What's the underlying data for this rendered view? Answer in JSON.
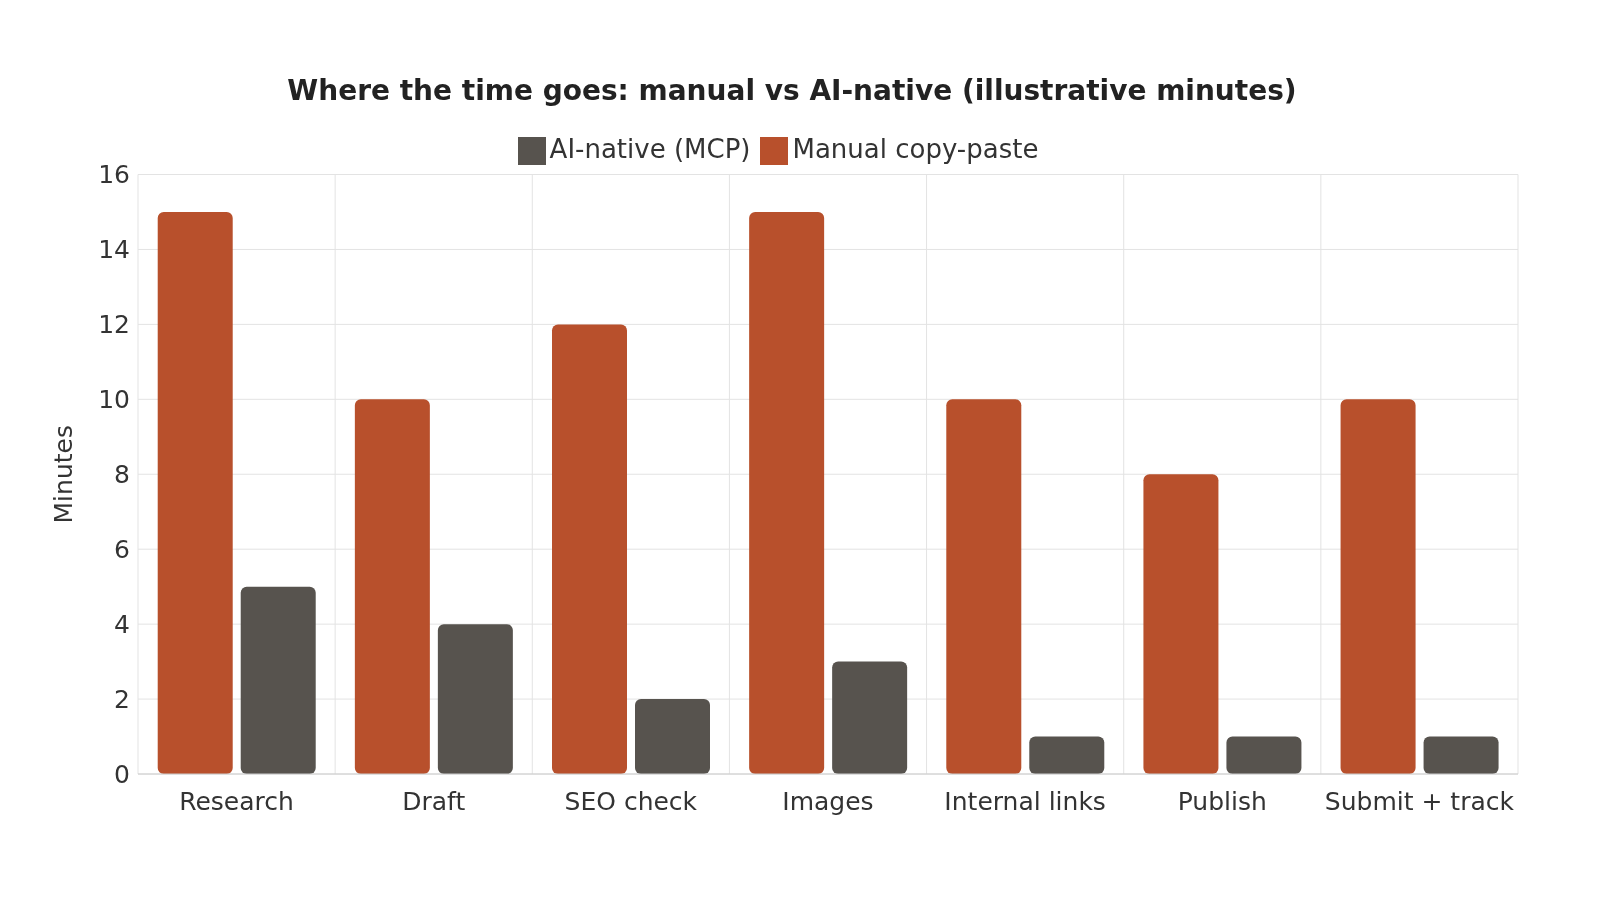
{
  "chart_data": {
    "type": "bar",
    "title": "Where the time goes: manual vs AI-native (illustrative minutes)",
    "ylabel": "Minutes",
    "categories": [
      "Research",
      "Draft",
      "SEO check",
      "Images",
      "Internal links",
      "Publish",
      "Submit + track"
    ],
    "series": [
      {
        "name": "Manual copy-paste",
        "color": "#b8502c",
        "values": [
          15,
          10,
          12,
          15,
          10,
          8,
          10
        ]
      },
      {
        "name": "AI-native (MCP)",
        "color": "#57534e",
        "values": [
          5,
          4,
          2,
          3,
          1,
          1,
          1
        ]
      }
    ],
    "ylim": [
      0,
      16
    ],
    "yticks": [
      0,
      2,
      4,
      6,
      8,
      10,
      12,
      14,
      16
    ],
    "grid": true,
    "legend": "top"
  }
}
